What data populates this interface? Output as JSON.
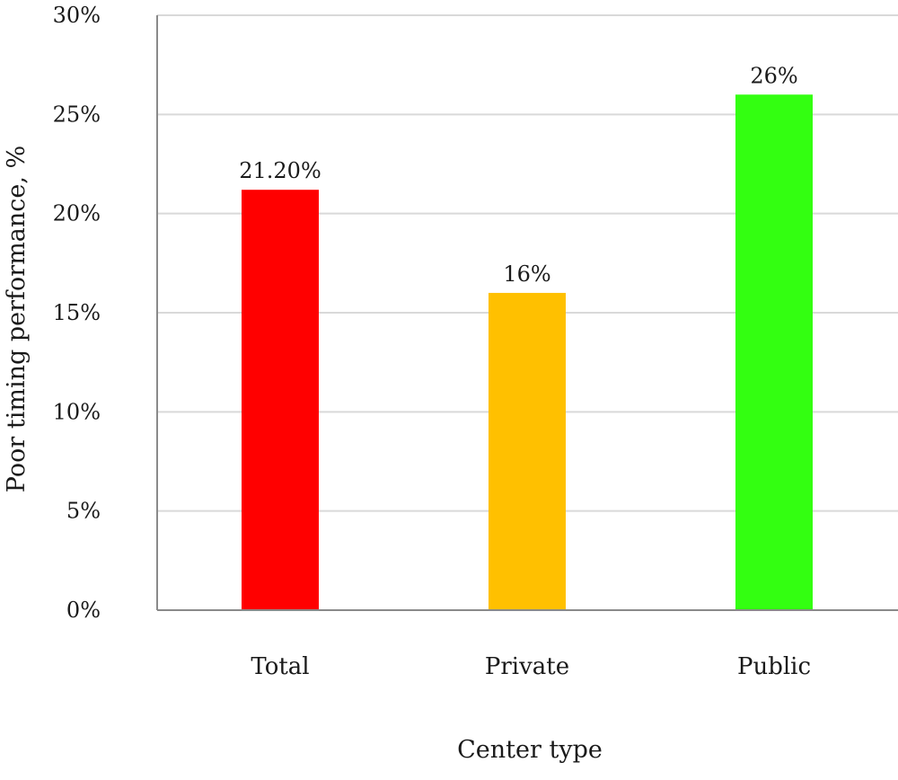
{
  "chart_data": {
    "type": "bar",
    "categories": [
      "Total",
      "Private",
      "Public"
    ],
    "values": [
      21.2,
      16,
      26
    ],
    "data_labels": [
      "21.20%",
      "16%",
      "26%"
    ],
    "colors": [
      "#ff0000",
      "#ffc000",
      "#33ff11"
    ],
    "xlabel": "Center type",
    "ylabel": "Poor timing performance, %",
    "ylim": [
      0,
      30
    ],
    "yticks": [
      0,
      5,
      10,
      15,
      20,
      25,
      30
    ],
    "ytick_labels": [
      "0%",
      "5%",
      "10%",
      "15%",
      "20%",
      "25%",
      "30%"
    ],
    "grid": true,
    "legend": "none"
  }
}
